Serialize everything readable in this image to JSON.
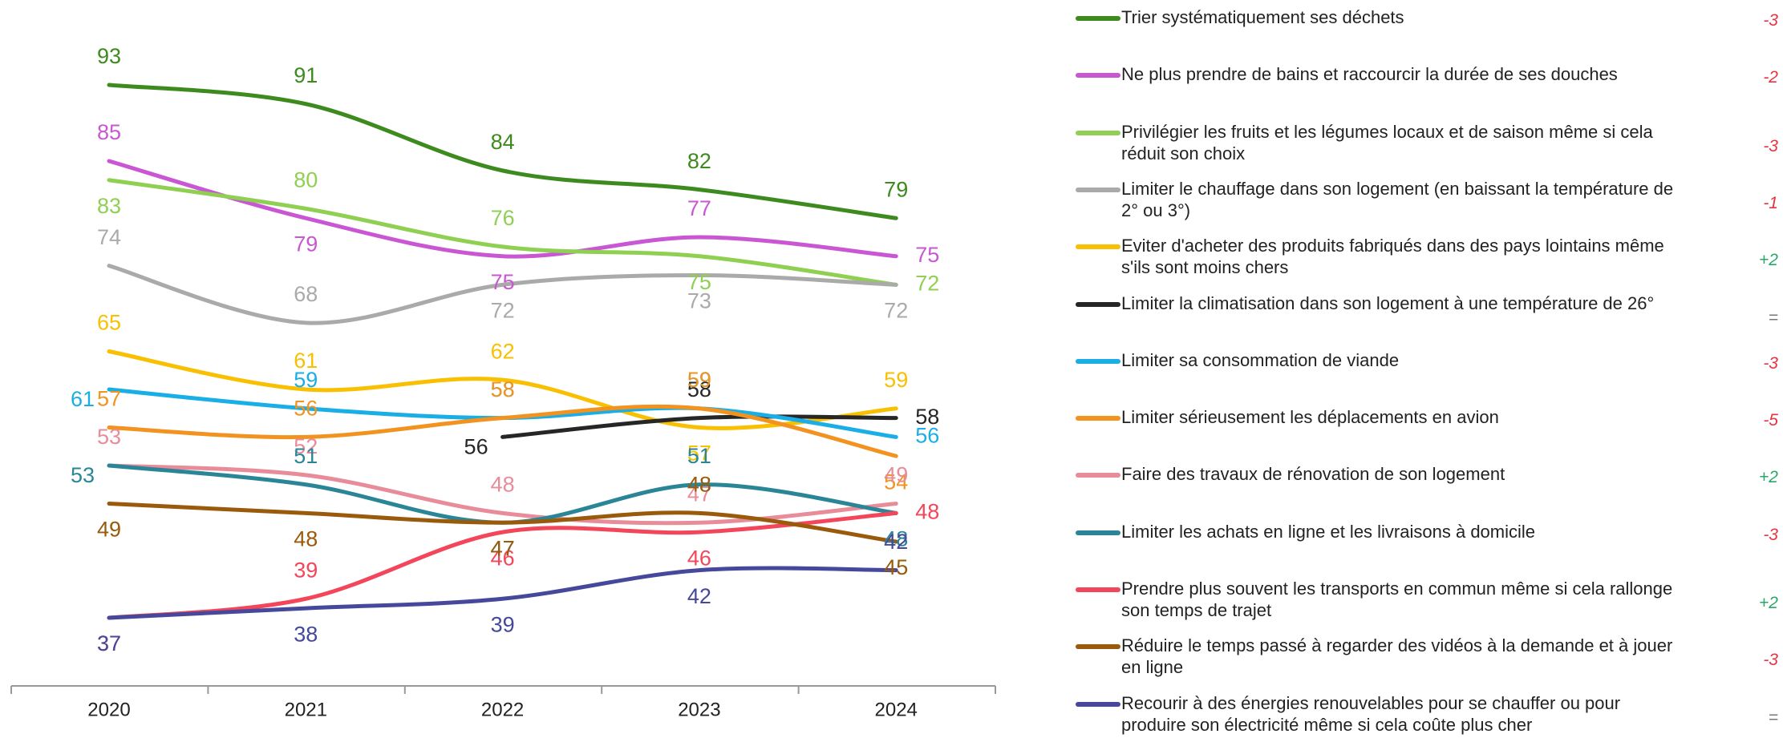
{
  "chart_data": {
    "type": "line",
    "categories": [
      "2020",
      "2021",
      "2022",
      "2023",
      "2024"
    ],
    "series": [
      {
        "name": "Trier systématiquement ses déchets",
        "color": "#3d8a1f",
        "values": [
          93,
          91,
          84,
          82,
          79
        ],
        "change": "-3"
      },
      {
        "name": "Ne plus prendre de bains et raccourcir la durée de ses douches",
        "color": "#c957d3",
        "values": [
          85,
          79,
          75,
          77,
          75
        ],
        "change": "-2"
      },
      {
        "name": "Privilégier les fruits et les légumes locaux et de saison même si cela réduit son choix",
        "color": "#8fd052",
        "values": [
          83,
          80,
          76,
          75,
          72
        ],
        "change": "-3"
      },
      {
        "name": "Limiter le chauffage dans son logement (en baissant la température de 2° ou 3°)",
        "color": "#aaaaaa",
        "values": [
          74,
          68,
          72,
          73,
          72
        ],
        "change": "-1"
      },
      {
        "name": "Eviter d'acheter des produits fabriqués dans des pays lointains même s'ils sont moins chers",
        "color": "#f8c000",
        "values": [
          65,
          61,
          62,
          57,
          59
        ],
        "change": "+2"
      },
      {
        "name": "Limiter la climatisation dans son logement à une température de 26°",
        "color": "#262626",
        "values": [
          null,
          null,
          56,
          58,
          58
        ],
        "change": "="
      },
      {
        "name": "Limiter sa consommation de viande",
        "color": "#1aaee6",
        "values": [
          61,
          59,
          58,
          59,
          56
        ],
        "change": "-3"
      },
      {
        "name": "Limiter sérieusement les déplacements en avion",
        "color": "#f2921f",
        "values": [
          57,
          56,
          58,
          59,
          54
        ],
        "change": "-5"
      },
      {
        "name": "Faire des travaux de rénovation de son logement",
        "color": "#e88c99",
        "values": [
          53,
          52,
          48,
          47,
          49
        ],
        "change": "+2"
      },
      {
        "name": "Limiter les achats en ligne et les livraisons à domicile",
        "color": "#2a8697",
        "values": [
          53,
          51,
          47,
          51,
          48
        ],
        "change": "-3"
      },
      {
        "name": "Prendre plus souvent les transports en commun même si cela rallonge son temps de trajet",
        "color": "#f3465b",
        "values": [
          37,
          39,
          46,
          46,
          48
        ],
        "change": "+2"
      },
      {
        "name": "Réduire le temps passé à regarder des vidéos à la demande et à jouer en ligne",
        "color": "#9a5a0b",
        "values": [
          49,
          48,
          47,
          48,
          45
        ],
        "change": "-3"
      },
      {
        "name": "Recourir à des énergies renouvelables pour se chauffer ou pour produire son électricité même si cela coûte plus cher",
        "color": "#45489b",
        "values": [
          37,
          38,
          39,
          42,
          42
        ],
        "change": "="
      }
    ]
  }
}
